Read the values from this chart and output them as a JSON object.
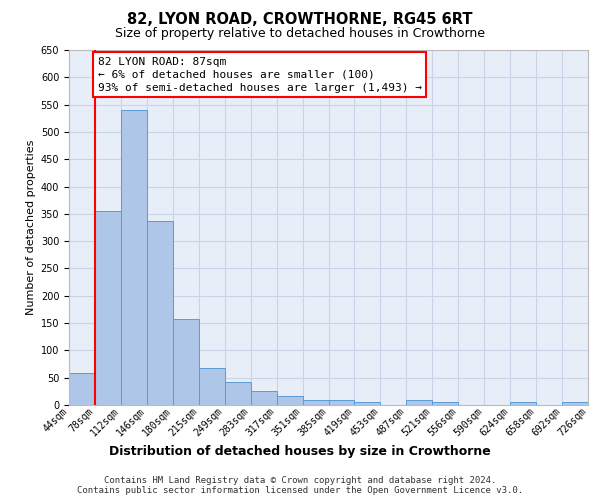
{
  "title": "82, LYON ROAD, CROWTHORNE, RG45 6RT",
  "subtitle": "Size of property relative to detached houses in Crowthorne",
  "xlabel": "Distribution of detached houses by size in Crowthorne",
  "ylabel": "Number of detached properties",
  "bar_values": [
    58,
    355,
    540,
    337,
    157,
    68,
    42,
    25,
    17,
    10,
    10,
    5,
    0,
    10,
    5,
    0,
    0,
    5,
    0,
    5
  ],
  "bin_labels": [
    "44sqm",
    "78sqm",
    "112sqm",
    "146sqm",
    "180sqm",
    "215sqm",
    "249sqm",
    "283sqm",
    "317sqm",
    "351sqm",
    "385sqm",
    "419sqm",
    "453sqm",
    "487sqm",
    "521sqm",
    "556sqm",
    "590sqm",
    "624sqm",
    "658sqm",
    "692sqm",
    "726sqm"
  ],
  "bar_color": "#aec6e8",
  "bar_edge_color": "#5b9bd5",
  "grid_color": "#c8d4e8",
  "background_color": "#e8eef8",
  "annotation_text": "82 LYON ROAD: 87sqm\n← 6% of detached houses are smaller (100)\n93% of semi-detached houses are larger (1,493) →",
  "annotation_box_color": "white",
  "annotation_border_color": "red",
  "red_line_x": 0.5,
  "ylim": [
    0,
    650
  ],
  "yticks": [
    0,
    50,
    100,
    150,
    200,
    250,
    300,
    350,
    400,
    450,
    500,
    550,
    600,
    650
  ],
  "footer_line1": "Contains HM Land Registry data © Crown copyright and database right 2024.",
  "footer_line2": "Contains public sector information licensed under the Open Government Licence v3.0.",
  "title_fontsize": 10.5,
  "subtitle_fontsize": 9,
  "ylabel_fontsize": 8,
  "xlabel_fontsize": 9,
  "tick_fontsize": 7,
  "annotation_fontsize": 8,
  "footer_fontsize": 6.5
}
